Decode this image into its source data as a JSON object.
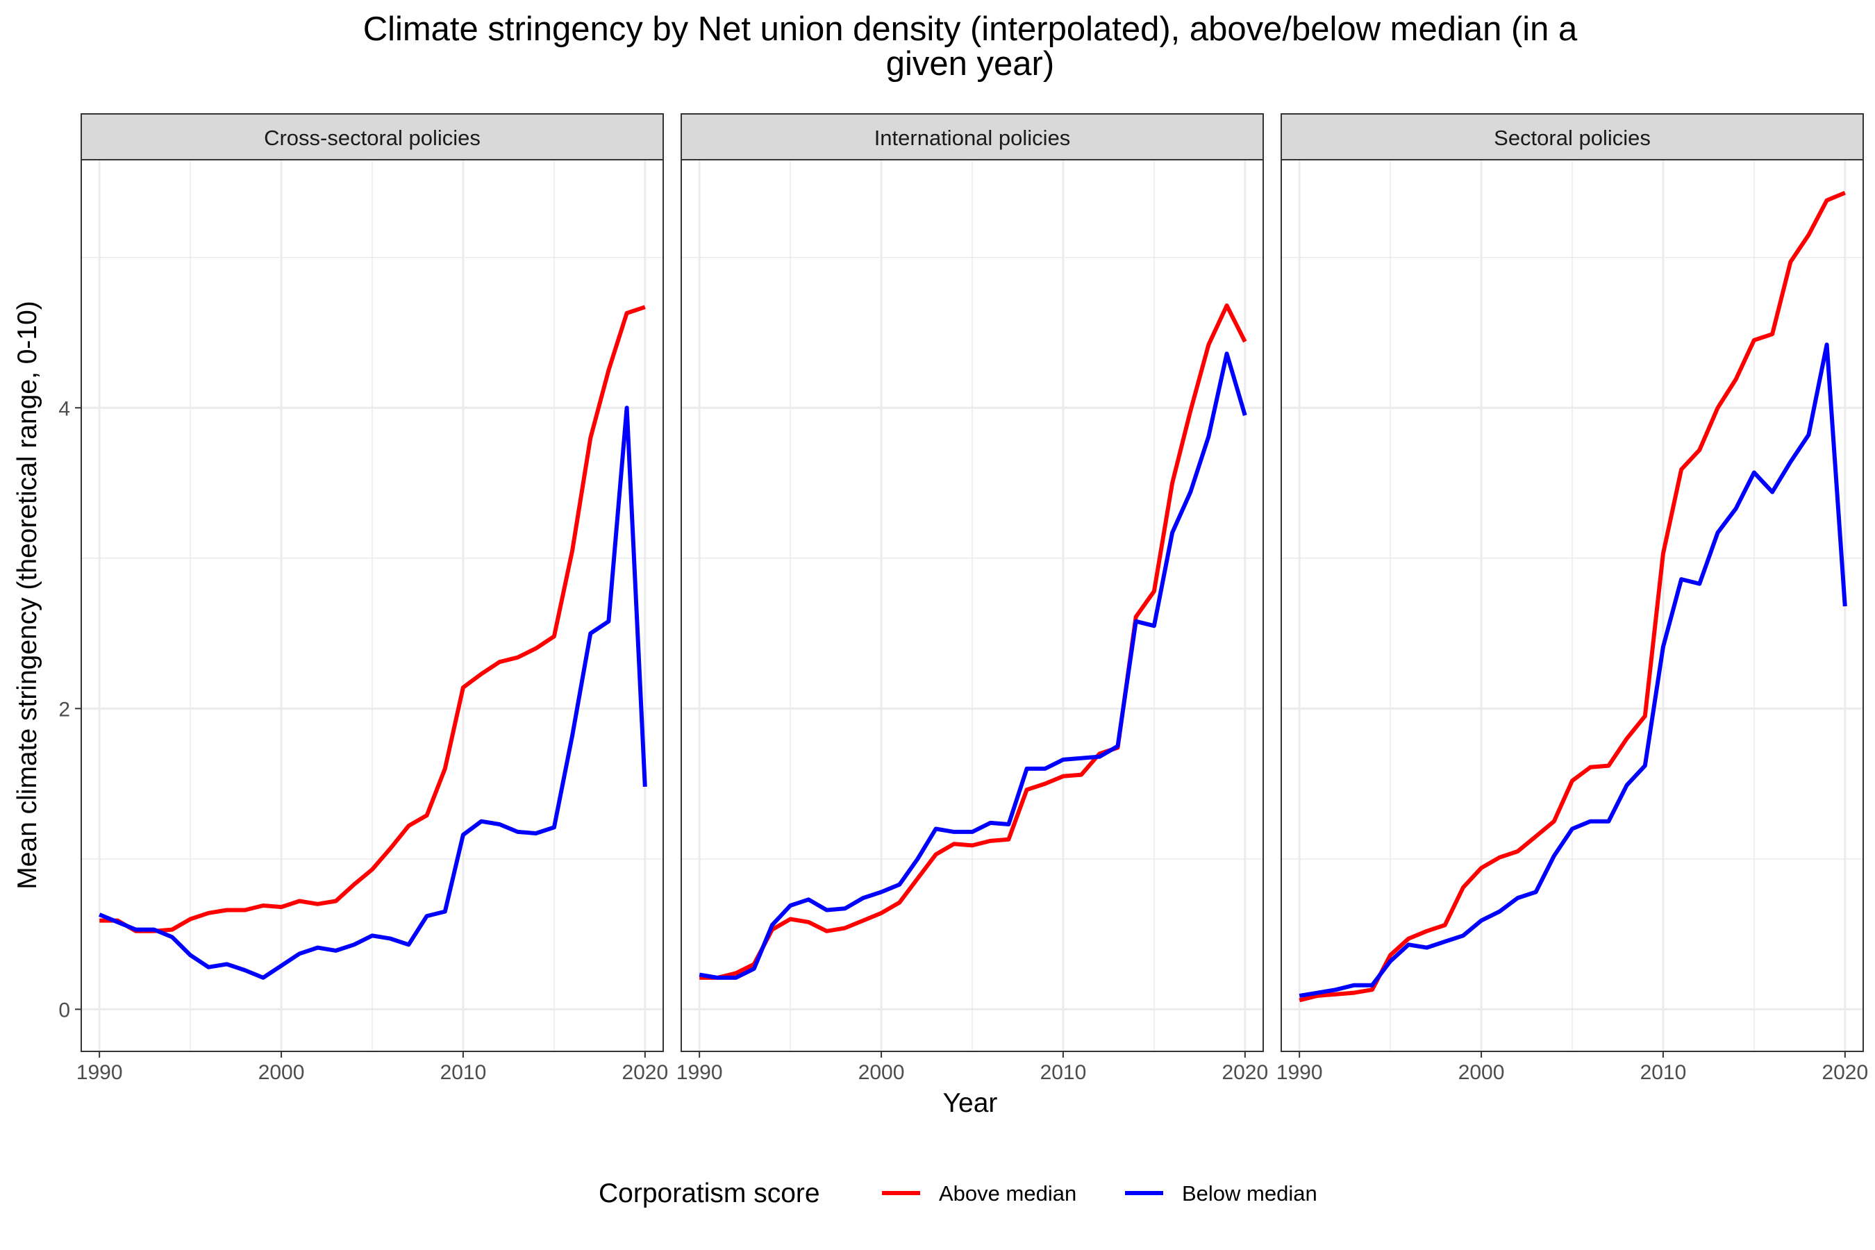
{
  "chart_data": {
    "type": "line",
    "title": "Climate stringency by Net union density (interpolated), above/below median (in a given year)",
    "title_lines": [
      "Climate stringency by Net union density (interpolated), above/below median (in a",
      "given year)"
    ],
    "xlabel": "Year",
    "ylabel": "Mean climate stringency (theoretical range, 0-10)",
    "xlim": [
      1989,
      2021
    ],
    "ylim": [
      -0.28,
      5.65
    ],
    "x_ticks": [
      1990,
      2000,
      2010,
      2020
    ],
    "y_ticks": [
      0,
      2,
      4
    ],
    "grid": true,
    "legend": {
      "title": "Corporatism score",
      "position": "bottom",
      "entries": [
        {
          "label": "Above median",
          "color": "#ff0000"
        },
        {
          "label": "Below median",
          "color": "#0000ff"
        }
      ]
    },
    "x": [
      1990,
      1991,
      1992,
      1993,
      1994,
      1995,
      1996,
      1997,
      1998,
      1999,
      2000,
      2001,
      2002,
      2003,
      2004,
      2005,
      2006,
      2007,
      2008,
      2009,
      2010,
      2011,
      2012,
      2013,
      2014,
      2015,
      2016,
      2017,
      2018,
      2019,
      2020
    ],
    "panels": [
      {
        "label": "Cross-sectoral policies",
        "series": [
          {
            "name": "Above median",
            "color": "#ff0000",
            "values": [
              0.59,
              0.59,
              0.52,
              0.52,
              0.53,
              0.6,
              0.64,
              0.66,
              0.66,
              0.69,
              0.68,
              0.72,
              0.7,
              0.72,
              0.83,
              0.93,
              1.07,
              1.22,
              1.29,
              1.6,
              2.14,
              2.23,
              2.31,
              2.34,
              2.4,
              2.48,
              3.05,
              3.8,
              4.25,
              4.63,
              4.67
            ]
          },
          {
            "name": "Below median",
            "color": "#0000ff",
            "values": [
              0.63,
              0.58,
              0.53,
              0.53,
              0.48,
              0.36,
              0.28,
              0.3,
              0.26,
              0.21,
              0.29,
              0.37,
              0.41,
              0.39,
              0.43,
              0.49,
              0.47,
              0.43,
              0.62,
              0.65,
              1.16,
              1.25,
              1.23,
              1.18,
              1.17,
              1.21,
              1.82,
              2.5,
              2.58,
              4.0,
              1.48
            ]
          }
        ]
      },
      {
        "label": "International policies",
        "series": [
          {
            "name": "Above median",
            "color": "#ff0000",
            "values": [
              0.21,
              0.21,
              0.24,
              0.3,
              0.53,
              0.6,
              0.58,
              0.52,
              0.54,
              0.59,
              0.64,
              0.71,
              0.87,
              1.03,
              1.1,
              1.09,
              1.12,
              1.13,
              1.46,
              1.5,
              1.55,
              1.56,
              1.7,
              1.74,
              2.61,
              2.78,
              3.5,
              3.98,
              4.42,
              4.68,
              4.44
            ]
          },
          {
            "name": "Below median",
            "color": "#0000ff",
            "values": [
              0.23,
              0.21,
              0.21,
              0.27,
              0.56,
              0.69,
              0.73,
              0.66,
              0.67,
              0.74,
              0.78,
              0.83,
              1.0,
              1.2,
              1.18,
              1.18,
              1.24,
              1.23,
              1.6,
              1.6,
              1.66,
              1.67,
              1.68,
              1.75,
              2.58,
              2.55,
              3.17,
              3.44,
              3.81,
              4.36,
              3.95
            ]
          }
        ]
      },
      {
        "label": "Sectoral policies",
        "series": [
          {
            "name": "Above median",
            "color": "#ff0000",
            "values": [
              0.06,
              0.09,
              0.1,
              0.11,
              0.13,
              0.36,
              0.47,
              0.52,
              0.56,
              0.81,
              0.94,
              1.01,
              1.05,
              1.15,
              1.25,
              1.52,
              1.61,
              1.62,
              1.8,
              1.95,
              3.03,
              3.59,
              3.72,
              4.0,
              4.19,
              4.45,
              4.49,
              4.97,
              5.15,
              5.38,
              5.43
            ]
          },
          {
            "name": "Below median",
            "color": "#0000ff",
            "values": [
              0.09,
              0.11,
              0.13,
              0.16,
              0.16,
              0.32,
              0.43,
              0.41,
              0.45,
              0.49,
              0.59,
              0.65,
              0.74,
              0.78,
              1.02,
              1.2,
              1.25,
              1.25,
              1.49,
              1.62,
              2.41,
              2.86,
              2.83,
              3.17,
              3.33,
              3.57,
              3.44,
              3.64,
              3.82,
              4.42,
              2.68
            ]
          }
        ]
      }
    ]
  }
}
